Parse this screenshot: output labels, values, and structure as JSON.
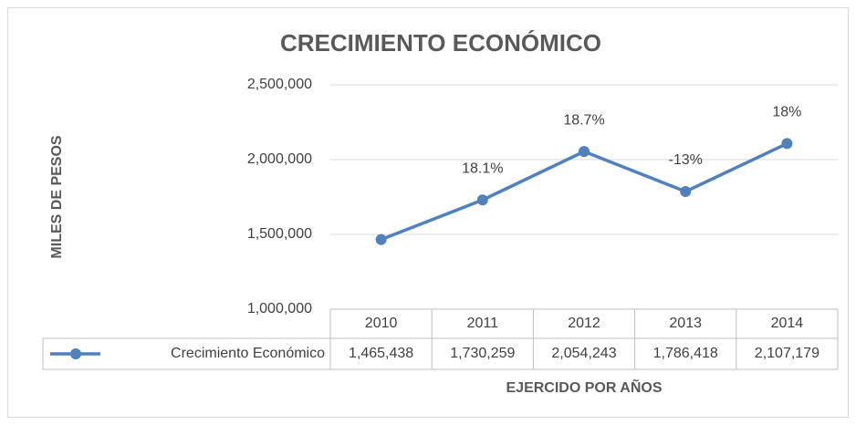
{
  "chart_data": {
    "type": "line",
    "title": "CRECIMIENTO ECONÓMICO",
    "y_label": "MILES DE PESOS",
    "x_label": "EJERCIDO POR AÑOS",
    "categories": [
      "2010",
      "2011",
      "2012",
      "2013",
      "2014"
    ],
    "series": [
      {
        "name": "Crecimiento Económico",
        "color": "#4f81bd",
        "values": [
          1465438,
          1730259,
          2054243,
          1786418,
          2107179
        ],
        "value_labels": [
          "1,465,438",
          "1,730,259",
          "2,054,243",
          "1,786,418",
          "2,107,179"
        ],
        "point_labels": [
          null,
          "18.1%",
          "18.7%",
          "-13%",
          "18%"
        ]
      }
    ],
    "ylim": [
      1000000,
      2500000
    ],
    "yticks": [
      {
        "value": 1000000,
        "label": "1,000,000"
      },
      {
        "value": 1500000,
        "label": "1,500,000"
      },
      {
        "value": 2000000,
        "label": "2,000,000"
      },
      {
        "value": 2500000,
        "label": "2,500,000"
      }
    ],
    "grid": true
  }
}
